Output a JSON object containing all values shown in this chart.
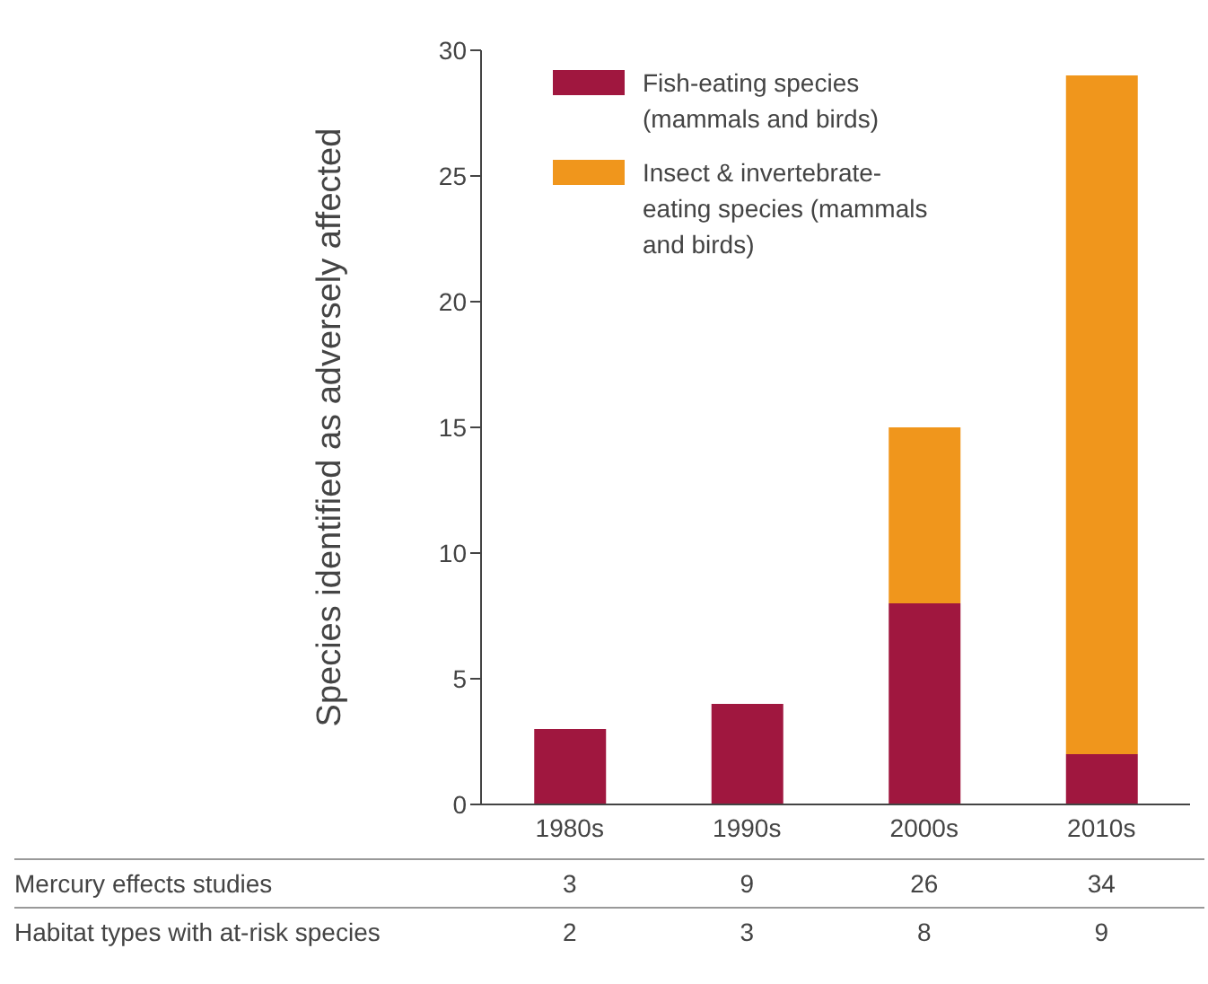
{
  "chart_data": {
    "type": "bar",
    "stacked": true,
    "ylabel": "Species identified as adversely affected",
    "categories": [
      "1980s",
      "1990s",
      "2000s",
      "2010s"
    ],
    "series": [
      {
        "name": "Fish-eating species (mammals and birds)",
        "color": "#a0173f",
        "values": [
          3,
          4,
          8,
          2
        ]
      },
      {
        "name": "Insect & invertebrate-eating species (mammals and birds)",
        "color": "#f0961c",
        "values": [
          0,
          0,
          7,
          27
        ]
      }
    ],
    "ylim": [
      0,
      30
    ],
    "yticks": [
      0,
      5,
      10,
      15,
      20,
      25,
      30
    ],
    "grid": false,
    "legend": "top left",
    "annotations": [
      "Mercury effects studies",
      "3",
      "9",
      "26",
      "34",
      "Habitat types with at-risk species",
      "2",
      "3",
      "8",
      "9"
    ]
  }
}
